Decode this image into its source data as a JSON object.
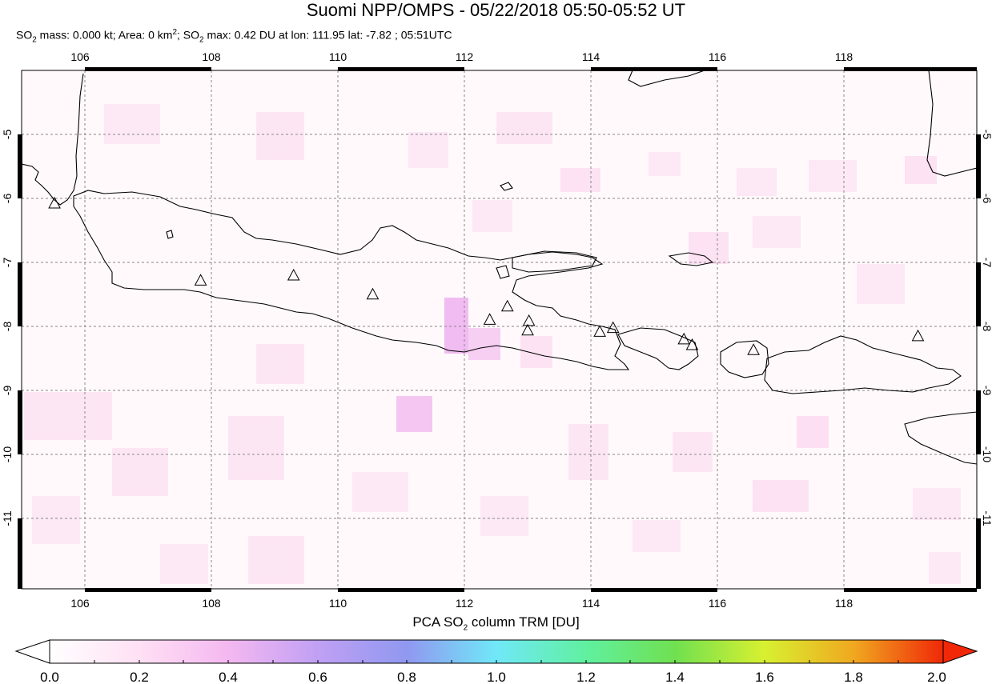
{
  "header": {
    "title": "Suomi NPP/OMPS - 05/22/2018 05:50-05:52 UT",
    "stats_prefix": "SO",
    "stats_mass": " mass: 0.000 kt; Area: 0 km",
    "stats_area_sup": "2",
    "stats_so2": "; SO",
    "stats_rest": " max: 0.42 DU at lon: 111.95 lat: -7.82 ; 05:51UTC",
    "sub2": "2"
  },
  "map": {
    "lon_ticks": [
      "106",
      "108",
      "110",
      "112",
      "114",
      "116",
      "118"
    ],
    "lat_ticks": [
      "-5",
      "-6",
      "-7",
      "-8",
      "-9",
      "-10",
      "-11"
    ],
    "lon_range": [
      104.9,
      120.0
    ],
    "lat_range": [
      -4.0,
      -12.2
    ],
    "volcano_marker": "triangle-icon",
    "volcanoes": [
      {
        "lon": 105.42,
        "lat": -6.1
      },
      {
        "lon": 107.73,
        "lat": -7.32
      },
      {
        "lon": 109.2,
        "lat": -7.24
      },
      {
        "lon": 110.45,
        "lat": -7.54
      },
      {
        "lon": 112.3,
        "lat": -7.94
      },
      {
        "lon": 112.58,
        "lat": -7.73
      },
      {
        "lon": 112.92,
        "lat": -7.96
      },
      {
        "lon": 112.9,
        "lat": -8.11
      },
      {
        "lon": 114.04,
        "lat": -8.13
      },
      {
        "lon": 114.25,
        "lat": -8.07
      },
      {
        "lon": 115.37,
        "lat": -8.25
      },
      {
        "lon": 115.5,
        "lat": -8.34
      },
      {
        "lon": 116.47,
        "lat": -8.42
      },
      {
        "lon": 119.07,
        "lat": -8.2
      }
    ]
  },
  "colorbar": {
    "title_prefix": "PCA SO",
    "title_sub": "2",
    "title_suffix": " column TRM [DU]",
    "labels": [
      "0.0",
      "0.2",
      "0.4",
      "0.6",
      "0.8",
      "1.0",
      "1.2",
      "1.4",
      "1.6",
      "1.8",
      "2.0"
    ],
    "colors": [
      "#ffffff",
      "#ffd0f0",
      "#d8a0f0",
      "#9a9af0",
      "#60d0f8",
      "#60f0c0",
      "#60e060",
      "#b0f030",
      "#f0e020",
      "#f09020",
      "#f03010"
    ]
  }
}
